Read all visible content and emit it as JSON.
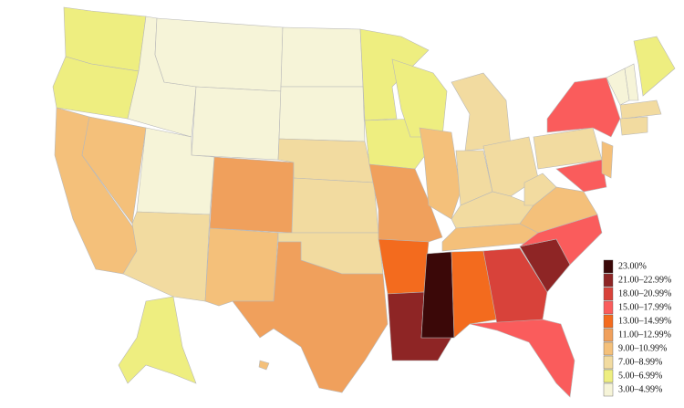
{
  "legend": {
    "items": [
      {
        "label": "23.00%",
        "color": "#3b0808"
      },
      {
        "label": "21.00–22.99%",
        "color": "#8e2525"
      },
      {
        "label": "18.00–20.99%",
        "color": "#d8423a"
      },
      {
        "label": "15.00–17.99%",
        "color": "#fa5c5c"
      },
      {
        "label": "13.00–14.99%",
        "color": "#f36b1e"
      },
      {
        "label": "11.00–12.99%",
        "color": "#f0a05c"
      },
      {
        "label": "9.00–10.99%",
        "color": "#f4c07a"
      },
      {
        "label": "7.00–8.99%",
        "color": "#f2dba0"
      },
      {
        "label": "5.00–6.99%",
        "color": "#eeee80"
      },
      {
        "label": "3.00–4.99%",
        "color": "#f6f4d8"
      }
    ]
  }
}
